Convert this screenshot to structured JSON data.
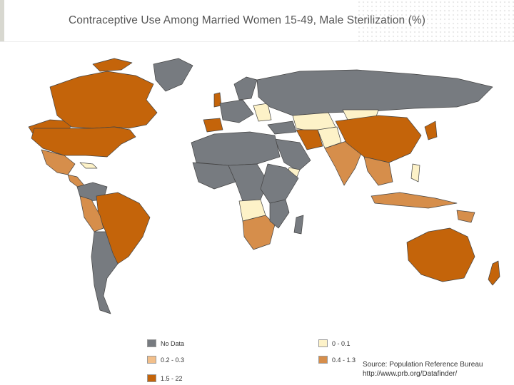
{
  "title": "Contraceptive Use Among Married Women 15-49, Male Sterilization (%)",
  "colors": {
    "no_data": "#777b80",
    "c0_0_1": "#fdf2c8",
    "c0_2_0_3": "#f2bf8a",
    "c0_4_1_3": "#d68e4b",
    "c1_5_22": "#c4640a",
    "border": "#444444"
  },
  "legend": [
    {
      "label": "No Data",
      "color": "#777b80"
    },
    {
      "label": "0 - 0.1",
      "color": "#fdf2c8"
    },
    {
      "label": "0.2 - 0.3",
      "color": "#f2bf8a"
    },
    {
      "label": "0.4 - 1.3",
      "color": "#d68e4b"
    },
    {
      "label": "1.5 - 22",
      "color": "#c4640a"
    }
  ],
  "source": {
    "line1": "Source: Population Reference Bureau",
    "line2": "http://www.prb.org/Datafinder/"
  }
}
